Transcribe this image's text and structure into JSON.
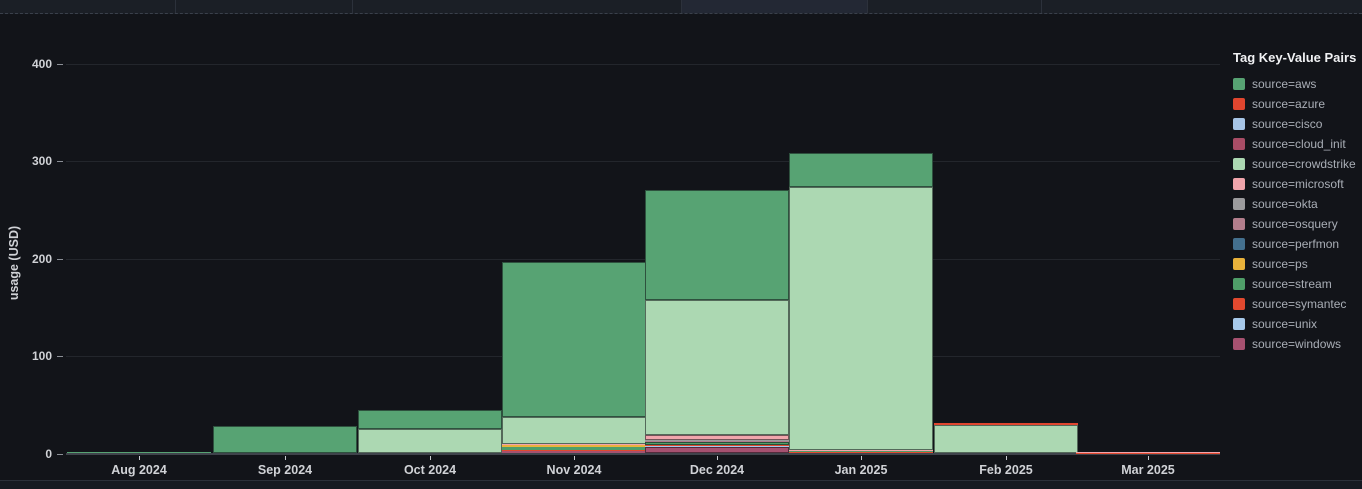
{
  "panel": {
    "y_axis_title": "usage (USD)",
    "legend_title": "Tag Key-Value Pairs"
  },
  "chart_data": {
    "type": "bar",
    "stacked": true,
    "title": "",
    "xlabel": "",
    "ylabel": "usage (USD)",
    "ylim": [
      0,
      420
    ],
    "yticks": [
      0,
      100,
      200,
      300,
      400
    ],
    "grid": "horizontal",
    "legend_position": "right",
    "legend_title": "Tag Key-Value Pairs",
    "categories": [
      "Aug 2024",
      "Sep 2024",
      "Oct 2024",
      "Nov 2024",
      "Dec 2024",
      "Jan 2025",
      "Feb 2025",
      "Mar 2025"
    ],
    "stack_order_bottom_to_top": [
      "windows",
      "unix",
      "symantec",
      "stream",
      "ps",
      "perfmon",
      "osquery",
      "okta",
      "microsoft",
      "crowdstrike",
      "cloud_init",
      "cisco",
      "azure",
      "aws"
    ],
    "series": [
      {
        "key": "aws",
        "name": "source=aws",
        "color": "#57A373",
        "values": [
          2,
          28,
          20,
          159,
          112,
          35,
          0,
          0
        ]
      },
      {
        "key": "azure",
        "name": "source=azure",
        "color": "#E0462F",
        "values": [
          0,
          0,
          0,
          0,
          0,
          0,
          1.5,
          0
        ]
      },
      {
        "key": "cisco",
        "name": "source=cisco",
        "color": "#A7C5E6",
        "values": [
          0,
          0,
          0,
          0,
          0,
          0,
          0,
          0
        ]
      },
      {
        "key": "cloud_init",
        "name": "source=cloud_init",
        "color": "#A84D66",
        "values": [
          0,
          0,
          0,
          0,
          0,
          0,
          0,
          0
        ]
      },
      {
        "key": "crowdstrike",
        "name": "source=crowdstrike",
        "color": "#ACD8B2",
        "values": [
          0,
          0,
          25,
          27,
          139,
          269,
          29.5,
          0
        ]
      },
      {
        "key": "microsoft",
        "name": "source=microsoft",
        "color": "#F0A5AC",
        "values": [
          0,
          0,
          0,
          1,
          5.5,
          1,
          0,
          0.5
        ]
      },
      {
        "key": "okta",
        "name": "source=okta",
        "color": "#9B9B9D",
        "values": [
          0,
          0,
          0,
          0,
          0.5,
          0,
          0,
          0
        ]
      },
      {
        "key": "osquery",
        "name": "source=osquery",
        "color": "#B27E8C",
        "values": [
          0,
          0,
          0,
          0,
          1,
          0,
          0,
          0
        ]
      },
      {
        "key": "perfmon",
        "name": "source=perfmon",
        "color": "#44708E",
        "values": [
          0,
          0,
          0,
          0,
          0,
          0,
          0,
          0
        ]
      },
      {
        "key": "ps",
        "name": "source=ps",
        "color": "#E9B23B",
        "values": [
          0,
          0,
          0,
          2,
          0,
          0,
          0,
          0
        ]
      },
      {
        "key": "stream",
        "name": "source=stream",
        "color": "#4F9E68",
        "values": [
          0,
          0,
          0,
          3,
          3.5,
          1,
          0,
          0
        ]
      },
      {
        "key": "symantec",
        "name": "source=symantec",
        "color": "#E1492F",
        "values": [
          0,
          0,
          0,
          1.5,
          1,
          0.5,
          0,
          0.5
        ]
      },
      {
        "key": "unix",
        "name": "source=unix",
        "color": "#A7C9EA",
        "values": [
          0,
          0,
          0,
          0,
          0.5,
          0,
          0,
          0
        ]
      },
      {
        "key": "windows",
        "name": "source=windows",
        "color": "#A65170",
        "values": [
          0,
          0,
          0,
          2.5,
          7,
          1.5,
          0,
          0.5
        ]
      }
    ]
  }
}
